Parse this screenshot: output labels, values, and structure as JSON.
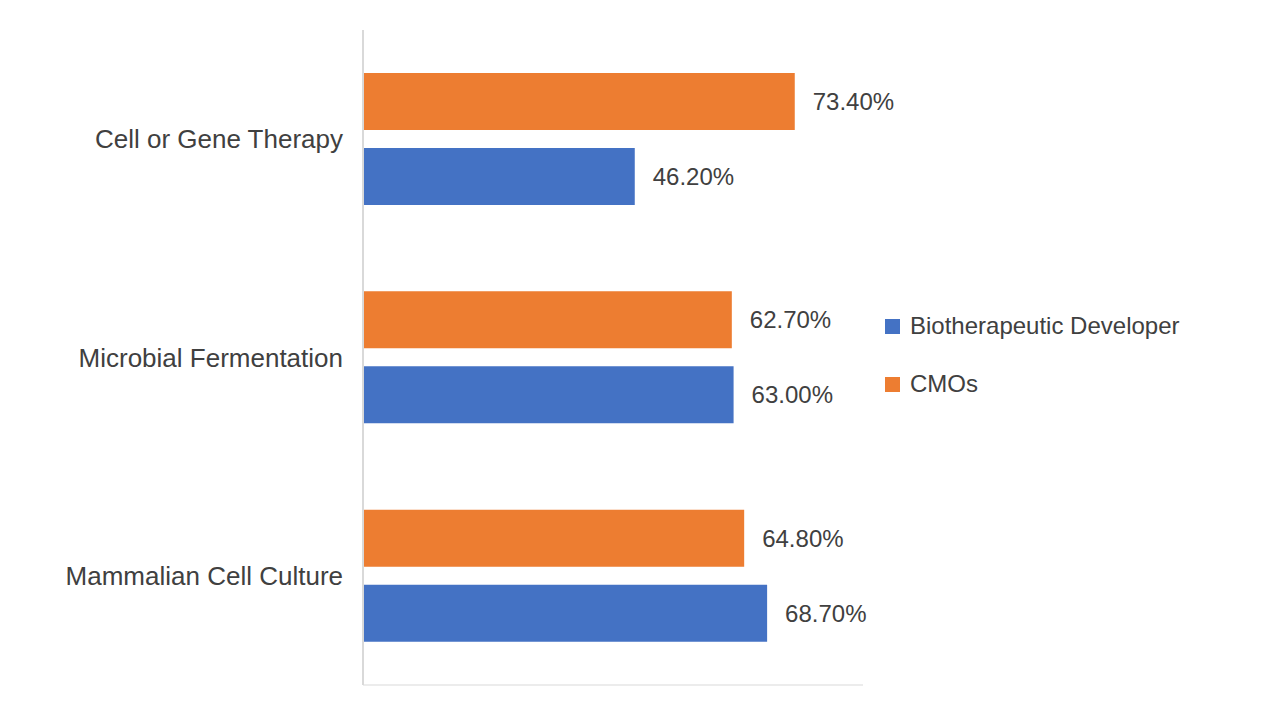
{
  "chart_data": {
    "type": "bar",
    "orientation": "horizontal",
    "categories": [
      "Cell or Gene Therapy",
      "Microbial Fermentation",
      "Mammalian Cell Culture"
    ],
    "series": [
      {
        "name": "CMOs",
        "color": "#ed7d31",
        "values": [
          73.4,
          62.7,
          64.8
        ],
        "value_labels": [
          "73.40%",
          "62.70%",
          "64.80%"
        ]
      },
      {
        "name": "Biotherapeutic Developer",
        "color": "#4472c4",
        "values": [
          46.2,
          63.0,
          68.7
        ],
        "value_labels": [
          "46.20%",
          "63.00%",
          "68.70%"
        ]
      }
    ],
    "xlim": [
      0,
      85
    ],
    "xticks": [],
    "data_labels": true,
    "tick_labels": "y",
    "legend": "right",
    "grid": false
  }
}
